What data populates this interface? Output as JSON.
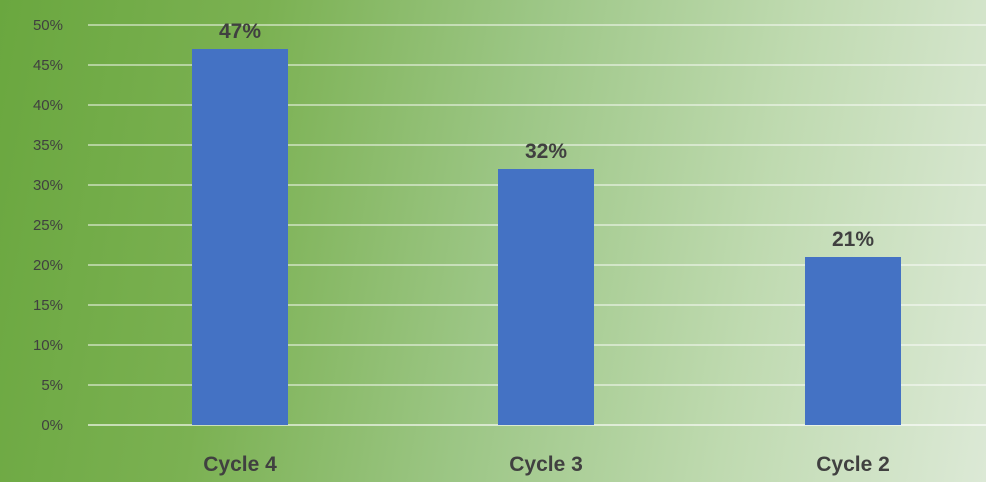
{
  "chart_data": {
    "type": "bar",
    "title": "",
    "xlabel": "",
    "ylabel": "",
    "categories": [
      "Cycle 4",
      "Cycle 3",
      "Cycle 2"
    ],
    "values": [
      47,
      32,
      21
    ],
    "data_labels": [
      "47%",
      "32%",
      "21%"
    ],
    "ylim": [
      0,
      50
    ],
    "y_ticks": [
      0,
      5,
      10,
      15,
      20,
      25,
      30,
      35,
      40,
      45,
      50
    ],
    "y_tick_labels": [
      "0%",
      "5%",
      "10%",
      "15%",
      "20%",
      "25%",
      "30%",
      "35%",
      "40%",
      "45%",
      "50%"
    ],
    "grid": true,
    "legend": "none",
    "colors": {
      "bar": "#4472c4",
      "gridline": "#ffffff",
      "text": "#404040",
      "background_start": "#6aa73f",
      "background_end": "#dce9d6"
    }
  }
}
